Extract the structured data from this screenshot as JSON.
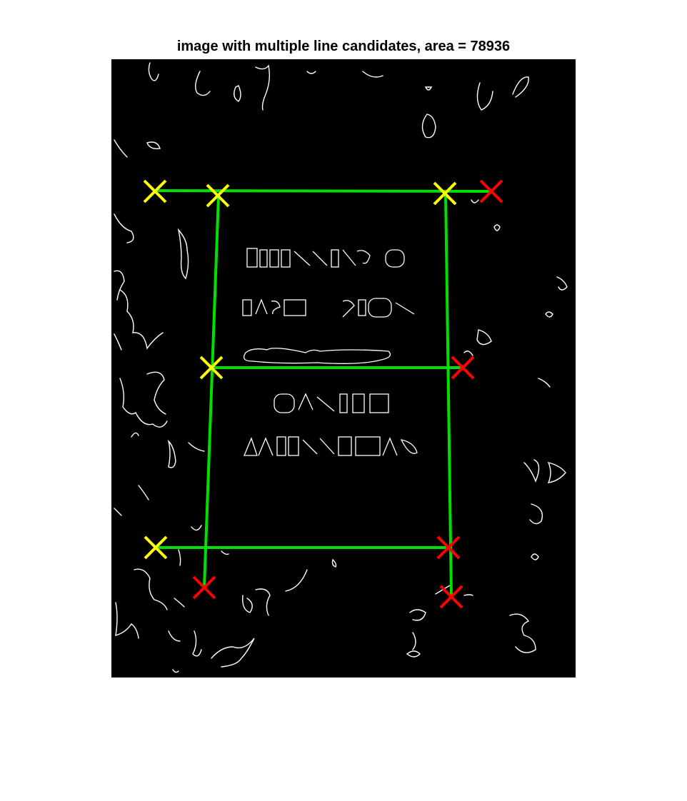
{
  "title": "image with multiple line candidates, area = 78936",
  "colors": {
    "background": "#000000",
    "edges": "#ffffff",
    "lines": "#00e000",
    "accepted_corner": "#ffff00",
    "rejected_corner": "#ff0000"
  },
  "markers": {
    "accepted": "yellow cross",
    "rejected": "red cross"
  },
  "edge_text": [
    "THINKING",
    "FAST SLOW",
    "DANIEL",
    "KAHNEMAN"
  ]
}
